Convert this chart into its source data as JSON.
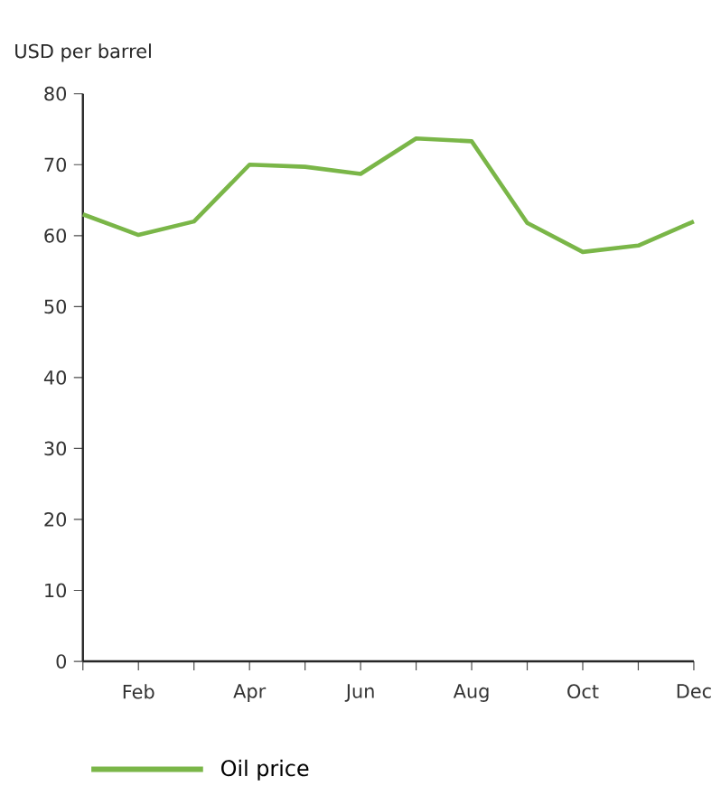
{
  "chart_data": {
    "type": "line",
    "ylabel": "USD per barrel",
    "categories": [
      null,
      "Feb",
      null,
      "Apr",
      null,
      "Jun",
      null,
      "Aug",
      null,
      "Oct",
      null,
      "Dec"
    ],
    "series": [
      {
        "name": "Oil price",
        "color": "#7ab648",
        "values": [
          63,
          60.1,
          62,
          70,
          69.7,
          68.7,
          73.7,
          73.3,
          61.8,
          57.7,
          58.6,
          62
        ]
      }
    ],
    "ylim": [
      0,
      80
    ],
    "yticks": [
      0,
      10,
      20,
      30,
      40,
      50,
      60,
      70,
      80
    ],
    "legend": "bottom"
  }
}
